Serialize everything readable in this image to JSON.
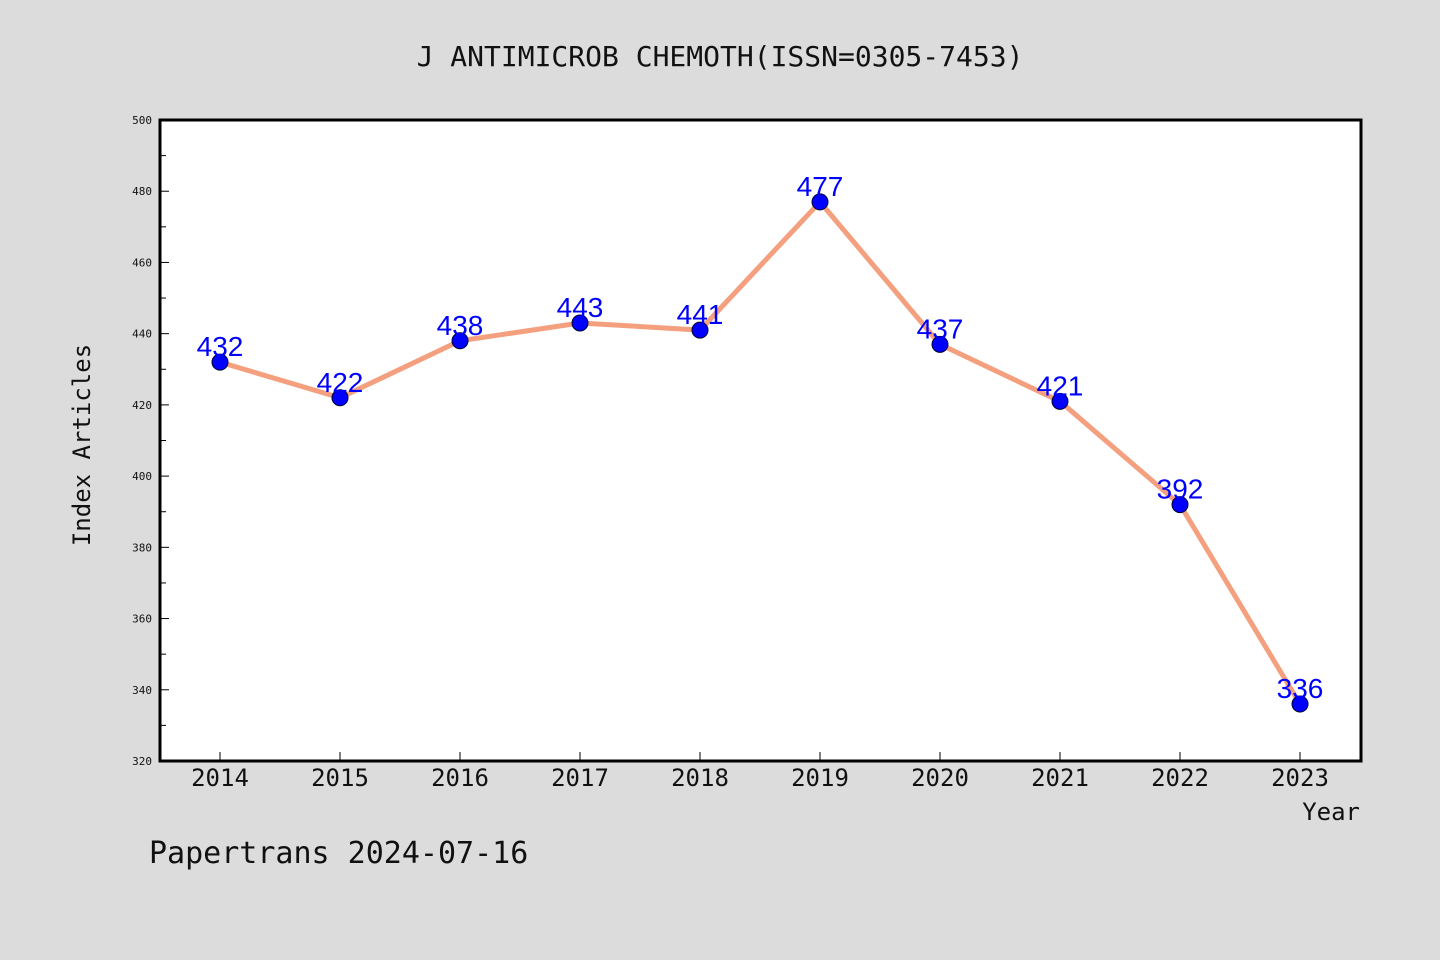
{
  "chart_data": {
    "type": "line",
    "title": "J ANTIMICROB CHEMOTH(ISSN=0305-7453)",
    "xlabel": "Year",
    "ylabel": "Index Articles",
    "categories": [
      "2014",
      "2015",
      "2016",
      "2017",
      "2018",
      "2019",
      "2020",
      "2021",
      "2022",
      "2023"
    ],
    "series": [
      {
        "values": [
          432,
          422,
          438,
          443,
          441,
          477,
          437,
          421,
          392,
          336
        ]
      }
    ],
    "ylim": [
      320,
      500
    ],
    "yticks": [
      "320",
      "340",
      "360",
      "380",
      "400",
      "420",
      "440",
      "460",
      "480",
      "500"
    ],
    "footer": "Papertrans 2024-07-16",
    "grid": false,
    "legend": "none",
    "colors": {
      "background": "#dcdcdc",
      "plot_background": "#ffffff",
      "line": "#f4a07f",
      "marker": "#0000ff",
      "value_label": "#0000ff",
      "text": "#111111"
    }
  }
}
